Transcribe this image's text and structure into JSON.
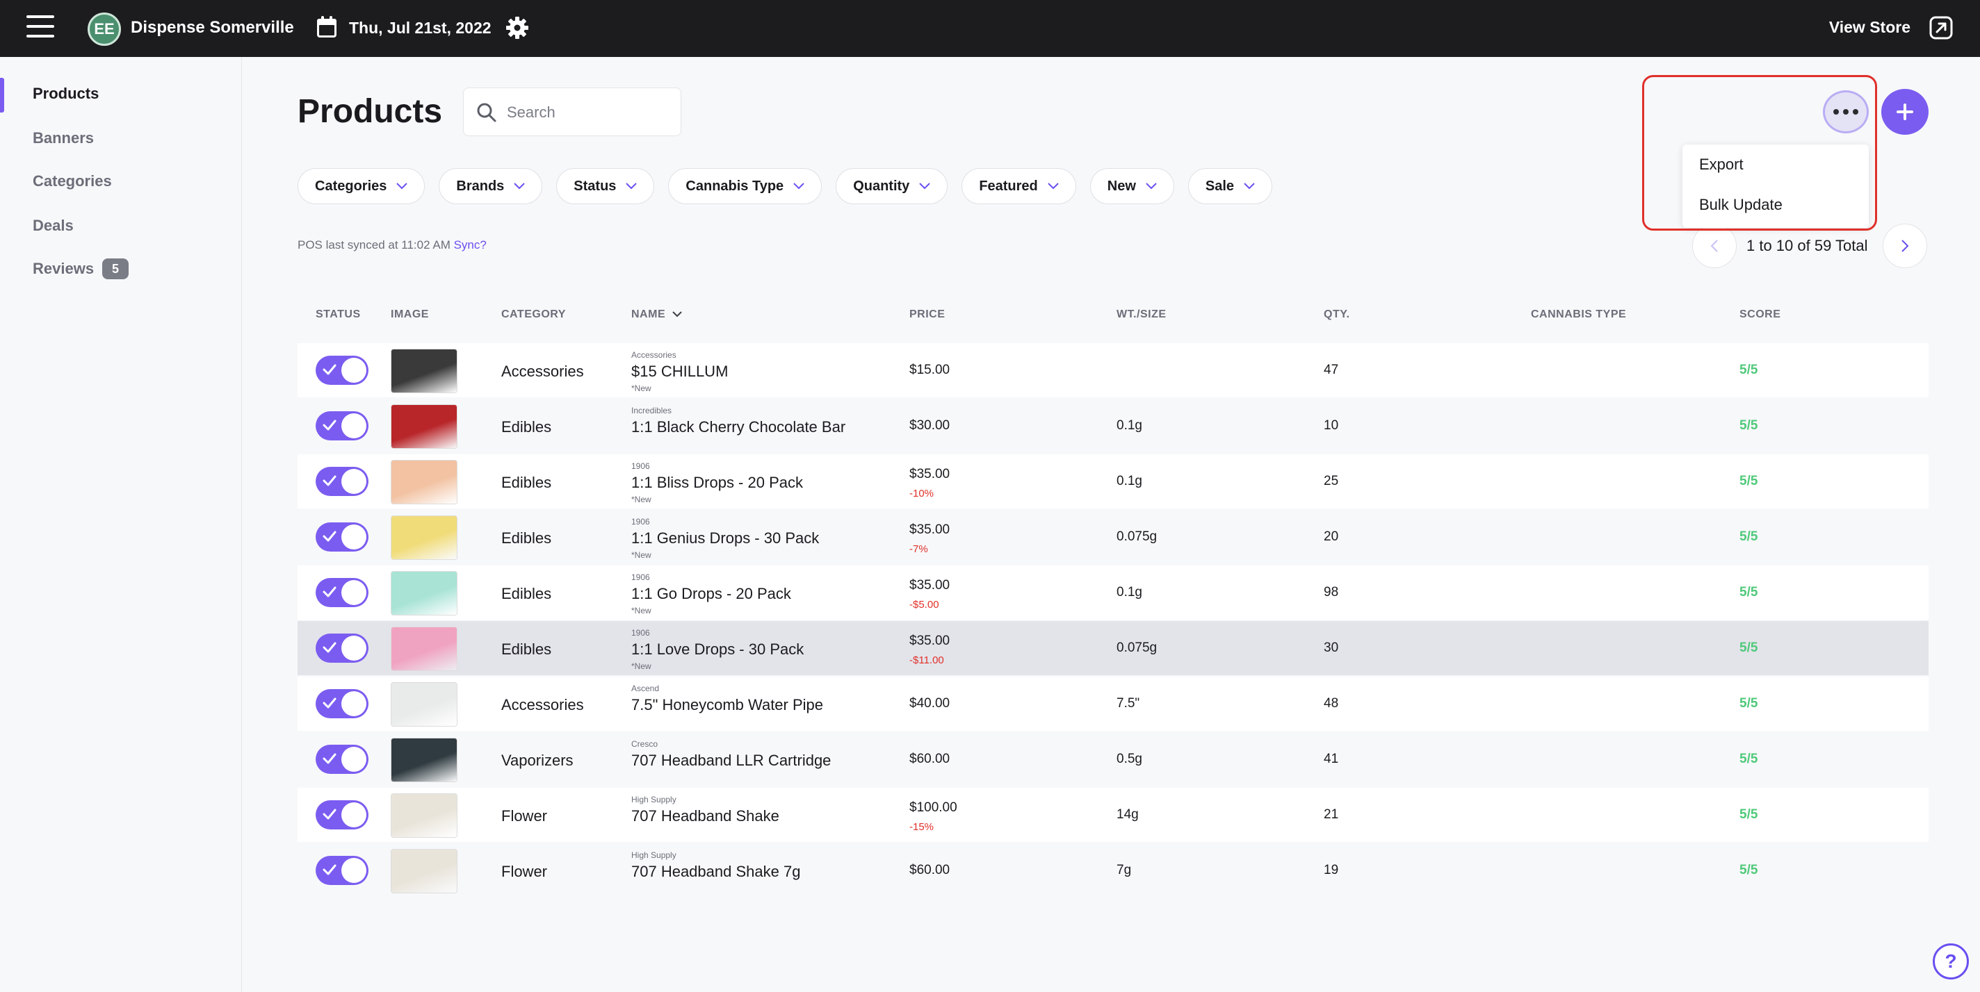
{
  "topbar": {
    "store_initials": "EE",
    "store_name": "Dispense Somerville",
    "date": "Thu, Jul 21st, 2022",
    "view_store": "View Store"
  },
  "sidebar": {
    "items": [
      {
        "label": "Products",
        "active": true
      },
      {
        "label": "Banners"
      },
      {
        "label": "Categories"
      },
      {
        "label": "Deals"
      },
      {
        "label": "Reviews",
        "badge": "5"
      }
    ]
  },
  "main": {
    "title": "Products",
    "search_placeholder": "Search",
    "filters": [
      "Categories",
      "Brands",
      "Status",
      "Cannabis Type",
      "Quantity",
      "Featured",
      "New",
      "Sale"
    ],
    "sync_text": "POS last synced at 11:02 AM",
    "sync_link": "Sync?",
    "pagination": "1 to 10 of 59 Total",
    "menu": {
      "items": [
        "Export",
        "Bulk Update"
      ]
    }
  },
  "table": {
    "columns": [
      "STATUS",
      "IMAGE",
      "CATEGORY",
      "NAME",
      "PRICE",
      "WT./SIZE",
      "QTY.",
      "CANNABIS TYPE",
      "SCORE"
    ],
    "rows": [
      {
        "category": "Accessories",
        "brand": "Accessories",
        "name": "$15 CHILLUM",
        "tag": "*New",
        "price": "$15.00",
        "discount": "",
        "wt": "",
        "qty": "47",
        "score": "5/5",
        "img": "#3a3a3a"
      },
      {
        "category": "Edibles",
        "brand": "Incredibles",
        "name": "1:1 Black Cherry Chocolate Bar",
        "tag": "",
        "price": "$30.00",
        "discount": "",
        "wt": "0.1g",
        "qty": "10",
        "score": "5/5",
        "img": "#b8262a"
      },
      {
        "category": "Edibles",
        "brand": "1906",
        "name": "1:1 Bliss Drops - 20 Pack",
        "tag": "*New",
        "price": "$35.00",
        "discount": "-10%",
        "wt": "0.1g",
        "qty": "25",
        "score": "5/5",
        "img": "#f2c2a2"
      },
      {
        "category": "Edibles",
        "brand": "1906",
        "name": "1:1 Genius Drops - 30 Pack",
        "tag": "*New",
        "price": "$35.00",
        "discount": "-7%",
        "wt": "0.075g",
        "qty": "20",
        "score": "5/5",
        "img": "#f1dc7a"
      },
      {
        "category": "Edibles",
        "brand": "1906",
        "name": "1:1 Go Drops - 20 Pack",
        "tag": "*New",
        "price": "$35.00",
        "discount": "-$5.00",
        "wt": "0.1g",
        "qty": "98",
        "score": "5/5",
        "img": "#a8e3d6"
      },
      {
        "category": "Edibles",
        "brand": "1906",
        "name": "1:1 Love Drops - 30 Pack",
        "tag": "*New",
        "price": "$35.00",
        "discount": "-$11.00",
        "wt": "0.075g",
        "qty": "30",
        "score": "5/5",
        "img": "#f0a3c0"
      },
      {
        "category": "Accessories",
        "brand": "Ascend",
        "name": "7.5\" Honeycomb Water Pipe",
        "tag": "",
        "price": "$40.00",
        "discount": "",
        "wt": "7.5\"",
        "qty": "48",
        "score": "5/5",
        "img": "#e8ebe9"
      },
      {
        "category": "Vaporizers",
        "brand": "Cresco",
        "name": "707 Headband LLR Cartridge",
        "tag": "",
        "price": "$60.00",
        "discount": "",
        "wt": "0.5g",
        "qty": "41",
        "score": "5/5",
        "img": "#2f3b40"
      },
      {
        "category": "Flower",
        "brand": "High Supply",
        "name": "707 Headband Shake",
        "tag": "",
        "price": "$100.00",
        "discount": "-15%",
        "wt": "14g",
        "qty": "21",
        "score": "5/5",
        "img": "#e9e4da"
      },
      {
        "category": "Flower",
        "brand": "High Supply",
        "name": "707 Headband Shake 7g",
        "tag": "",
        "price": "$60.00",
        "discount": "",
        "wt": "7g",
        "qty": "19",
        "score": "5/5",
        "img": "#e9e4da"
      }
    ]
  },
  "colors": {
    "accent": "#7b5cf0",
    "score": "#4fc97a",
    "discount": "#e0302a",
    "highlight": "#e0302a"
  }
}
